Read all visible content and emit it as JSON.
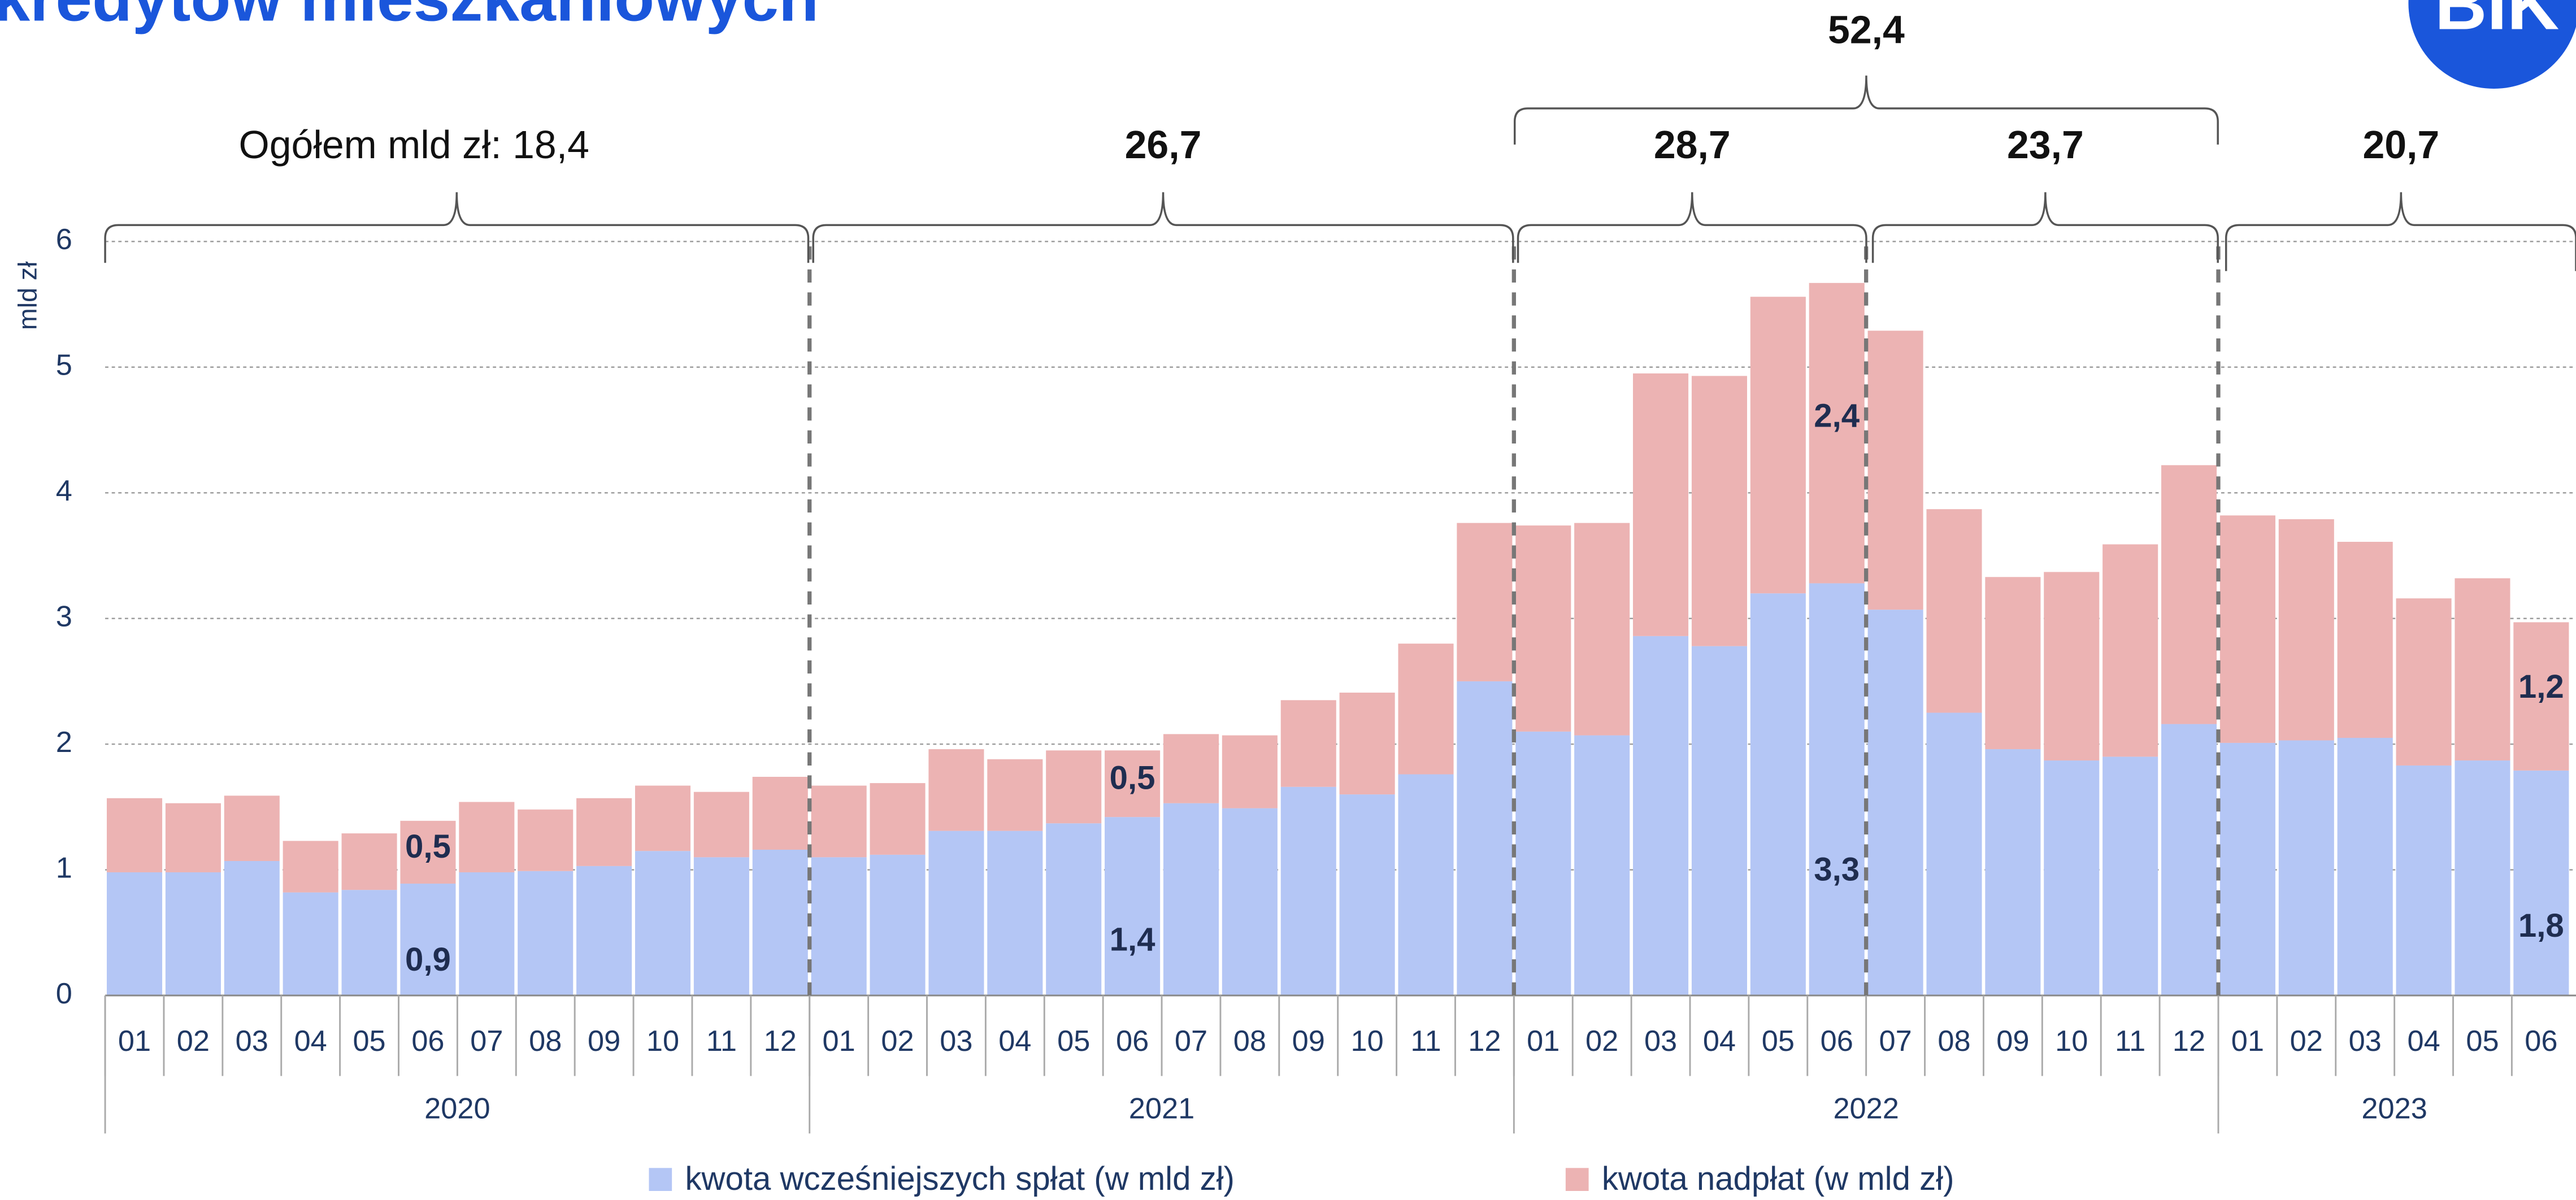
{
  "chart_data": {
    "type": "stacked_bar",
    "title": "kredytów mieszkaniowych",
    "logo": "BIK",
    "y_label": "mld zł",
    "categories": [
      "01",
      "02",
      "03",
      "04",
      "05",
      "06",
      "07",
      "08",
      "09",
      "10",
      "11",
      "12",
      "01",
      "02",
      "03",
      "04",
      "05",
      "06",
      "07",
      "08",
      "09",
      "10",
      "11",
      "12",
      "01",
      "02",
      "03",
      "04",
      "05",
      "06",
      "07",
      "08",
      "09",
      "10",
      "11",
      "12",
      "01",
      "02",
      "03",
      "04",
      "05",
      "06"
    ],
    "years": [
      "2020",
      "2021",
      "2022",
      "2023"
    ],
    "series": [
      {
        "name": "kwota wcześniejszych spłat (w mld zł)",
        "color": "#b4c6f5",
        "values": [
          0.98,
          0.98,
          1.07,
          0.82,
          0.84,
          0.89,
          0.98,
          0.99,
          1.03,
          1.15,
          1.1,
          1.16,
          1.1,
          1.12,
          1.31,
          1.31,
          1.37,
          1.42,
          1.53,
          1.49,
          1.66,
          1.6,
          1.76,
          2.5,
          2.1,
          2.07,
          2.86,
          2.78,
          3.2,
          3.28,
          3.07,
          2.25,
          1.96,
          1.87,
          1.9,
          2.16,
          2.01,
          2.03,
          2.05,
          1.83,
          1.87,
          1.79
        ],
        "value_labels": [
          null,
          null,
          null,
          null,
          null,
          "0,9",
          null,
          null,
          null,
          null,
          null,
          null,
          null,
          null,
          null,
          null,
          null,
          "1,4",
          null,
          null,
          null,
          null,
          null,
          null,
          null,
          null,
          null,
          null,
          null,
          "3,3",
          null,
          null,
          null,
          null,
          null,
          null,
          null,
          null,
          null,
          null,
          null,
          "1,8"
        ]
      },
      {
        "name": "kwota nadpłat (w mld zł)",
        "color": "#ecb3b3",
        "values": [
          0.59,
          0.55,
          0.52,
          0.41,
          0.45,
          0.5,
          0.56,
          0.49,
          0.54,
          0.52,
          0.52,
          0.58,
          0.57,
          0.57,
          0.65,
          0.57,
          0.58,
          0.53,
          0.55,
          0.58,
          0.69,
          0.81,
          1.04,
          1.26,
          1.64,
          1.69,
          2.09,
          2.15,
          2.36,
          2.39,
          2.22,
          1.62,
          1.37,
          1.5,
          1.69,
          2.06,
          1.81,
          1.76,
          1.56,
          1.33,
          1.45,
          1.18
        ],
        "value_labels": [
          null,
          null,
          null,
          null,
          null,
          "0,5",
          null,
          null,
          null,
          null,
          null,
          null,
          null,
          null,
          null,
          null,
          null,
          "0,5",
          null,
          null,
          null,
          null,
          null,
          null,
          null,
          null,
          null,
          null,
          null,
          "2,4",
          null,
          null,
          null,
          null,
          null,
          null,
          null,
          null,
          null,
          null,
          null,
          "1,2"
        ]
      }
    ],
    "annotations": [
      "Ogółem mld zł: 18,4",
      "26,7",
      "28,7",
      "23,7",
      "20,7",
      "52,4"
    ],
    "ylim": [
      0,
      6
    ],
    "yticks": [
      0,
      1,
      2,
      3,
      4,
      5,
      6
    ],
    "grid": true
  }
}
